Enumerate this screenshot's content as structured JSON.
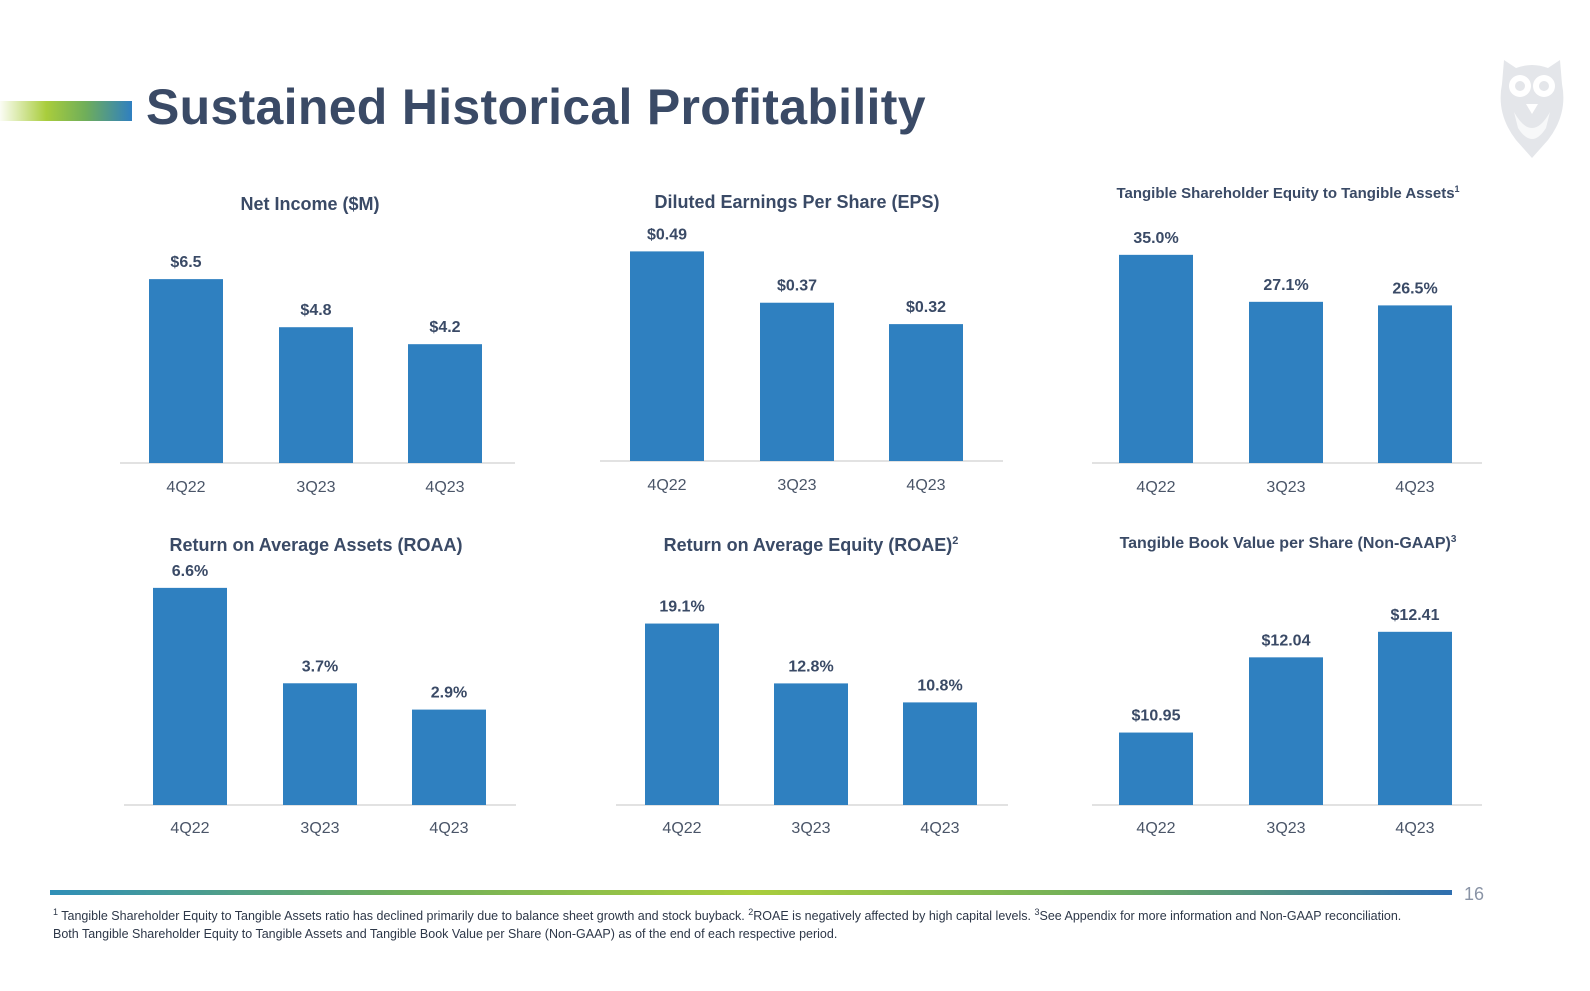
{
  "page": {
    "title": "Sustained Historical Profitability",
    "page_number": "16"
  },
  "footnote": {
    "sup1": "1",
    "text1": "Tangible Shareholder Equity to Tangible Assets ratio has declined primarily due to balance sheet growth and stock buyback.",
    "sup2": "2",
    "text2": "ROAE is negatively affected by high capital levels.",
    "sup3": "3",
    "text3": "See Appendix for more information and Non-GAAP reconciliation. Both Tangible Shareholder Equity to Tangible Assets and Tangible Book Value per Share (Non-GAAP) as of the end of each respective period."
  },
  "colors": {
    "bar": "#2f80c0",
    "title": "#3a4a66"
  },
  "chart_data": [
    {
      "type": "bar",
      "title": "Net Income ($M)",
      "categories": [
        "4Q22",
        "3Q23",
        "4Q23"
      ],
      "values": [
        6.5,
        4.8,
        4.2
      ],
      "labels": [
        "$6.5",
        "$4.8",
        "$4.2"
      ],
      "ylim": [
        0,
        7.6
      ],
      "xlabel": "",
      "ylabel": ""
    },
    {
      "type": "bar",
      "title": "Diluted Earnings Per Share (EPS)",
      "categories": [
        "4Q22",
        "3Q23",
        "4Q23"
      ],
      "values": [
        0.49,
        0.37,
        0.32
      ],
      "labels": [
        "$0.49",
        "$0.37",
        "$0.32"
      ],
      "ylim": [
        0,
        0.54
      ],
      "xlabel": "",
      "ylabel": ""
    },
    {
      "type": "bar",
      "title": "Tangible Shareholder Equity to Tangible Assets",
      "title_sup": "1",
      "categories": [
        "4Q22",
        "3Q23",
        "4Q23"
      ],
      "values": [
        35.0,
        27.1,
        26.5
      ],
      "labels": [
        "35.0%",
        "27.1%",
        "26.5%"
      ],
      "ylim": [
        0,
        38
      ],
      "xlabel": "",
      "ylabel": ""
    },
    {
      "type": "bar",
      "title": "Return on Average Assets (ROAA)",
      "categories": [
        "4Q22",
        "3Q23",
        "4Q23"
      ],
      "values": [
        6.6,
        3.7,
        2.9
      ],
      "labels": [
        "6.6%",
        "3.7%",
        "2.9%"
      ],
      "ylim": [
        0,
        6.9
      ],
      "xlabel": "",
      "ylabel": ""
    },
    {
      "type": "bar",
      "title": "Return on Average Equity (ROAE)",
      "title_sup": "2",
      "categories": [
        "4Q22",
        "3Q23",
        "4Q23"
      ],
      "values": [
        19.1,
        12.8,
        10.8
      ],
      "labels": [
        "19.1%",
        "12.8%",
        "10.8%"
      ],
      "ylim": [
        0,
        22
      ],
      "xlabel": "",
      "ylabel": ""
    },
    {
      "type": "bar",
      "title": "Tangible Book Value per Share (Non-GAAP)",
      "title_sup": "3",
      "categories": [
        "4Q22",
        "3Q23",
        "4Q23"
      ],
      "values": [
        10.95,
        12.04,
        12.41
      ],
      "labels": [
        "$10.95",
        "$12.04",
        "$12.41"
      ],
      "ylim": [
        9.9,
        12.9
      ],
      "xlabel": "",
      "ylabel": ""
    }
  ]
}
